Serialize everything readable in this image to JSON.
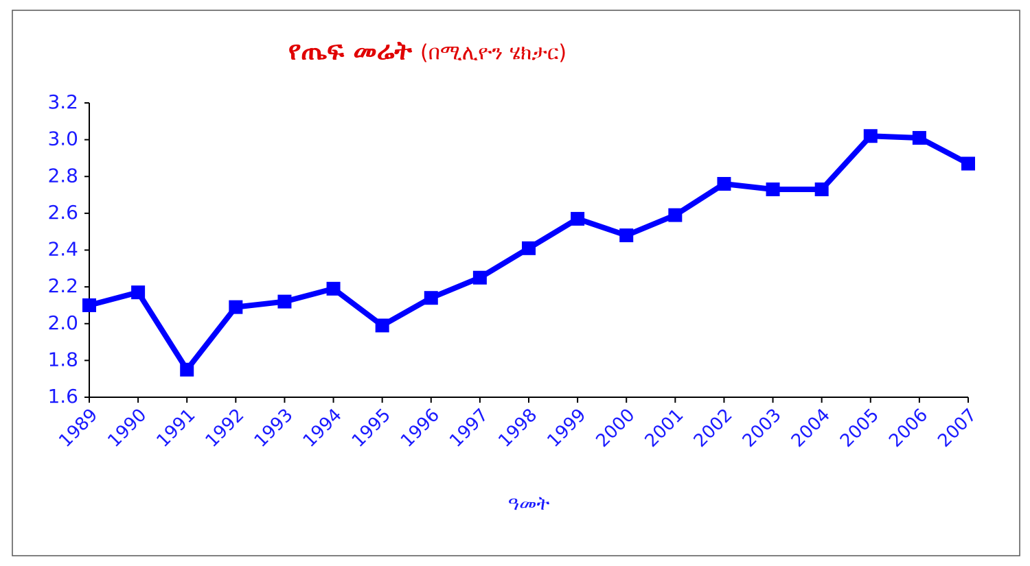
{
  "chart_data": {
    "type": "line",
    "title": "የጤፍ መሬት",
    "subtitle": "(በሚሊዮን ሄክታር)",
    "x_label": "ዓመት",
    "categories": [
      "1989",
      "1990",
      "1991",
      "1992",
      "1993",
      "1994",
      "1995",
      "1996",
      "1997",
      "1998",
      "1999",
      "2000",
      "2001",
      "2002",
      "2003",
      "2004",
      "2005",
      "2006",
      "2007"
    ],
    "series": [
      {
        "color": "#0000ff",
        "values": [
          2.1,
          2.17,
          1.75,
          2.09,
          2.12,
          2.19,
          1.99,
          2.14,
          2.25,
          2.41,
          2.57,
          2.48,
          2.59,
          2.76,
          2.73,
          2.73,
          3.02,
          3.01,
          2.87
        ]
      }
    ],
    "ylim": [
      1.6,
      3.2
    ],
    "yticks": [
      1.6,
      1.8,
      {
        "value": 2,
        "label": "2.0"
      },
      2.2,
      2.4,
      2.6,
      2.8,
      {
        "value": 3,
        "label": "3.0"
      },
      3.2
    ],
    "grid": false
  }
}
